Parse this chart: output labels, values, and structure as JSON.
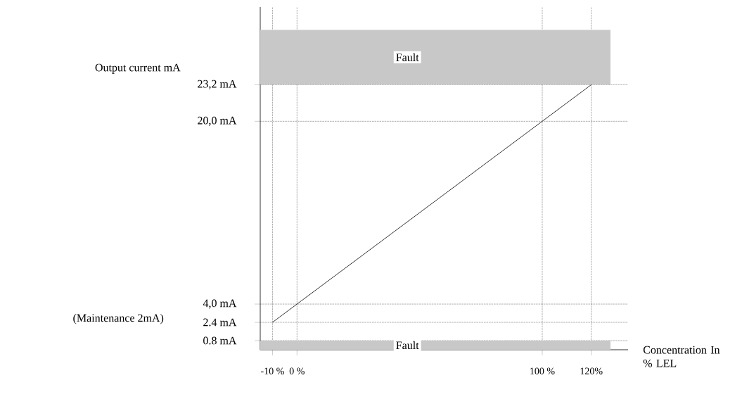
{
  "chart_data": {
    "type": "line",
    "xlabel": "Concentration In % LEL",
    "ylabel": "Output current mA",
    "xlim": [
      -15,
      135
    ],
    "ylim": [
      0,
      30
    ],
    "xticks": [
      {
        "value": -10,
        "label": "-10 %"
      },
      {
        "value": 0,
        "label": "0 %"
      },
      {
        "value": 100,
        "label": "100 %"
      },
      {
        "value": 120,
        "label": "120%"
      }
    ],
    "yticks": [
      {
        "value": 0.8,
        "label": "0.8 mA"
      },
      {
        "value": 2.4,
        "label": "2.4 mA"
      },
      {
        "value": 4,
        "label": "4,0 mA"
      },
      {
        "value": 20,
        "label": "20,0 mA"
      },
      {
        "value": 23.2,
        "label": "23,2 mA"
      }
    ],
    "grid": true,
    "series": [
      {
        "color": "#000000",
        "x": [
          -10,
          0,
          100,
          120
        ],
        "values": [
          2.4,
          4,
          20,
          23.2
        ]
      }
    ],
    "bands": [
      {
        "axis": "y",
        "from": 23.2,
        "to": 28,
        "label": "Fault",
        "color": "#c8c8c8"
      },
      {
        "axis": "y",
        "from": 0,
        "to": 0.8,
        "label": "Fault",
        "color": "#c8c8c8"
      }
    ],
    "annotations": [
      "(Maintenance 2mA)"
    ]
  }
}
